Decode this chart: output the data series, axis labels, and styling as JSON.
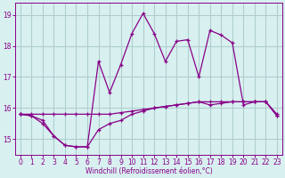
{
  "xlabel": "Windchill (Refroidissement éolien,°C)",
  "x": [
    0,
    1,
    2,
    3,
    4,
    5,
    6,
    7,
    8,
    9,
    10,
    11,
    12,
    13,
    14,
    15,
    16,
    17,
    18,
    19,
    20,
    21,
    22,
    23
  ],
  "line_flat": [
    15.8,
    15.8,
    15.8,
    15.8,
    15.8,
    15.8,
    15.8,
    15.8,
    15.8,
    15.85,
    15.9,
    15.95,
    16.0,
    16.05,
    16.1,
    16.15,
    16.2,
    16.2,
    16.2,
    16.2,
    16.2,
    16.2,
    16.2,
    15.75
  ],
  "line_low": [
    15.8,
    15.75,
    15.5,
    15.1,
    14.8,
    14.75,
    14.75,
    15.3,
    15.5,
    15.6,
    15.8,
    15.9,
    16.0,
    16.05,
    16.1,
    16.15,
    16.2,
    16.1,
    16.15,
    16.2,
    16.2,
    16.2,
    16.2,
    15.75
  ],
  "line_wave": [
    15.8,
    15.75,
    15.6,
    15.1,
    14.8,
    14.75,
    14.75,
    17.5,
    16.5,
    17.4,
    18.4,
    19.05,
    18.4,
    17.5,
    18.15,
    18.2,
    17.0,
    18.5,
    18.35,
    18.1,
    16.1,
    16.2,
    16.2,
    15.8
  ],
  "color": "#880088",
  "bg_color": "#d8f0f0",
  "grid_color": "#b0cece",
  "ylim": [
    14.5,
    19.4
  ],
  "yticks": [
    15,
    16,
    17,
    18,
    19
  ],
  "xlim": [
    -0.5,
    23.5
  ],
  "xticks": [
    0,
    1,
    2,
    3,
    4,
    5,
    6,
    7,
    8,
    9,
    10,
    11,
    12,
    13,
    14,
    15,
    16,
    17,
    18,
    19,
    20,
    21,
    22,
    23
  ]
}
